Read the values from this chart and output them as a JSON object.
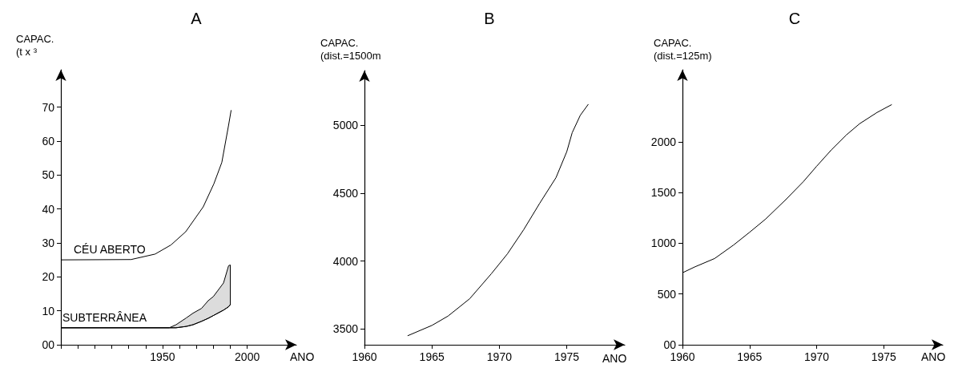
{
  "chart_data": [
    {
      "type": "line",
      "title": "A",
      "ylabel": "CAPAC.\n(t x ³",
      "xlabel": "ANO",
      "xlim": [
        1890,
        2029
      ],
      "xticks": [
        {
          "value": 1890,
          "label": null
        },
        {
          "value": 1900,
          "label": null
        },
        {
          "value": 1910,
          "label": null
        },
        {
          "value": 1920,
          "label": null
        },
        {
          "value": 1930,
          "label": null
        },
        {
          "value": 1940,
          "label": null
        },
        1950,
        {
          "value": 1960,
          "label": null
        },
        {
          "value": 1970,
          "label": null
        },
        {
          "value": 1980,
          "label": null
        },
        {
          "value": 1990,
          "label": null
        },
        2000
      ],
      "ylim": [
        0,
        81
      ],
      "yticks": [
        {
          "value": 0,
          "label": "00"
        },
        10,
        20,
        30,
        40,
        50,
        60,
        70
      ],
      "series": [
        {
          "name": "CÉU ABERTO",
          "color": "#000000",
          "x": [
            1890,
            1931.4,
            1945.6,
            1955,
            1963.7,
            1974,
            1980.3,
            1985,
            1989,
            1990.5
          ],
          "values": [
            25,
            25.1,
            26.7,
            29.4,
            33.3,
            40.6,
            47.4,
            53.7,
            64.7,
            69.1
          ]
        },
        {
          "name": "SUBTERRÂNEA",
          "color": "#000000",
          "x": [
            1890,
            1954,
            1958,
            1964,
            1968,
            1973,
            1977,
            1980,
            1986,
            1989,
            1990
          ],
          "values": [
            5,
            5,
            5,
            5.4,
            5.9,
            6.9,
            7.8,
            8.6,
            10.2,
            11.2,
            11.8
          ],
          "lower": [
            5,
            5,
            5,
            5.4,
            5.9,
            6.9,
            7.8,
            8.6,
            10.2,
            11.2,
            11.8
          ],
          "upper": [
            5,
            5,
            5.9,
            7.9,
            9.3,
            10.7,
            13,
            14.2,
            18.2,
            23.3,
            23.5
          ]
        }
      ]
    },
    {
      "type": "line",
      "title": "B",
      "ylabel": "CAPAC.\n(dist.=1500m",
      "xlabel": "ANO",
      "xlim": [
        1960,
        1979.3
      ],
      "xticks": [
        1960,
        1965,
        1970,
        1975
      ],
      "ylim": [
        3385,
        5400
      ],
      "yticks": [
        3500,
        4000,
        4500,
        5000
      ],
      "series": [
        {
          "color": "#000000",
          "x": [
            1963.2,
            1965,
            1966.2,
            1967.8,
            1969.4,
            1970.6,
            1971.8,
            1973,
            1974.2,
            1975,
            1975.4,
            1976,
            1976.6
          ],
          "values": [
            3451,
            3527,
            3596,
            3723,
            3906,
            4053,
            4230,
            4426,
            4613,
            4804,
            4943,
            5071,
            5153
          ]
        }
      ]
    },
    {
      "type": "line",
      "title": "C",
      "ylabel": "CAPAC.\n(dist.=125m)",
      "xlabel": "ANO",
      "xlim": [
        1960,
        1979.4
      ],
      "xticks": [
        1960,
        1965,
        1970,
        1975
      ],
      "ylim": [
        0,
        2710
      ],
      "yticks": [
        {
          "value": 0,
          "label": "00"
        },
        500,
        1000,
        1500,
        2000
      ],
      "series": [
        {
          "color": "#000000",
          "x": [
            1960,
            1960.9,
            1962.4,
            1963.8,
            1965,
            1966.2,
            1967.7,
            1969,
            1970,
            1971.1,
            1972.2,
            1973.2,
            1974.5,
            1975.6
          ],
          "values": [
            709,
            766,
            850,
            982,
            1108,
            1239,
            1430,
            1606,
            1759,
            1921,
            2066,
            2178,
            2289,
            2367
          ]
        }
      ]
    }
  ]
}
